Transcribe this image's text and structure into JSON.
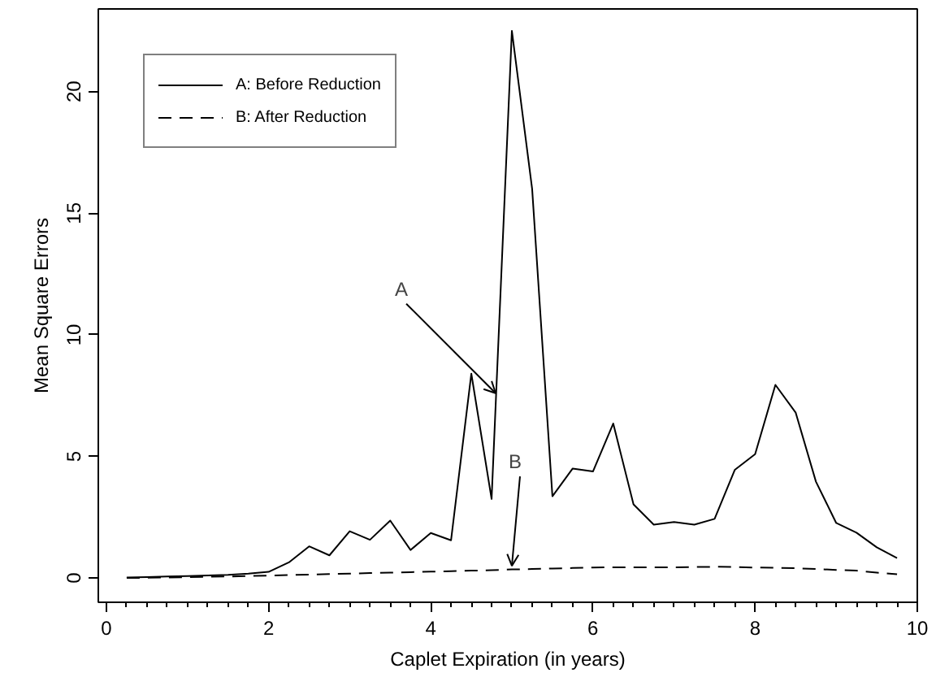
{
  "chart_data": {
    "type": "line",
    "xlabel": "Caplet Expiration (in years)",
    "ylabel": "Mean Square Errors",
    "x": [
      0.25,
      0.5,
      0.75,
      1.0,
      1.25,
      1.5,
      1.75,
      2.0,
      2.25,
      2.5,
      2.75,
      3.0,
      3.25,
      3.5,
      3.75,
      4.0,
      4.25,
      4.5,
      4.75,
      5.0,
      5.25,
      5.5,
      5.75,
      6.0,
      6.25,
      6.5,
      6.75,
      7.0,
      7.25,
      7.5,
      7.75,
      8.0,
      8.25,
      8.5,
      8.75,
      9.0,
      9.25,
      9.5,
      9.75
    ],
    "series": [
      {
        "name": "A: Before Reduction",
        "color": "#000000",
        "line_style": "solid",
        "values": [
          0.02,
          0.04,
          0.06,
          0.08,
          0.1,
          0.13,
          0.18,
          0.25,
          0.64,
          1.3,
          0.93,
          1.92,
          1.57,
          2.36,
          1.15,
          1.85,
          1.55,
          8.4,
          3.25,
          22.5,
          16.0,
          3.36,
          4.5,
          4.38,
          6.35,
          3.03,
          2.19,
          2.3,
          2.19,
          2.43,
          4.45,
          5.09,
          7.94,
          6.8,
          3.96,
          2.26,
          1.86,
          1.26,
          0.82
        ]
      },
      {
        "name": "B: After Reduction",
        "color": "#000000",
        "line_style": "dashed",
        "values": [
          0.0,
          0.01,
          0.02,
          0.03,
          0.05,
          0.06,
          0.08,
          0.1,
          0.12,
          0.14,
          0.16,
          0.18,
          0.2,
          0.22,
          0.24,
          0.26,
          0.28,
          0.3,
          0.32,
          0.35,
          0.37,
          0.39,
          0.41,
          0.43,
          0.44,
          0.44,
          0.44,
          0.44,
          0.45,
          0.46,
          0.45,
          0.43,
          0.42,
          0.4,
          0.37,
          0.33,
          0.3,
          0.22,
          0.15
        ]
      }
    ],
    "xlim": [
      -0.1,
      10
    ],
    "xticks": [
      0,
      2,
      4,
      6,
      8,
      10
    ],
    "ylim": [
      -1,
      23.4
    ],
    "yticks": [
      0,
      5,
      10,
      15,
      20
    ],
    "annotations": [
      {
        "text": "A",
        "x": 4.8,
        "y": 7.6
      },
      {
        "text": "B",
        "x": 5.0,
        "y": 0.5
      }
    ],
    "legend": "top left",
    "grid": false
  }
}
